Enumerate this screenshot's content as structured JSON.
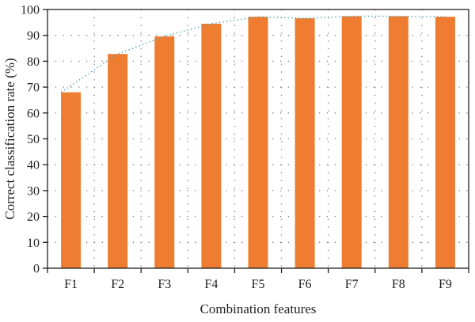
{
  "chart_data": {
    "type": "bar",
    "title": "",
    "xlabel": "Combination features",
    "ylabel": "Correct classification rate (%)",
    "categories": [
      "F1",
      "F2",
      "F3",
      "F4",
      "F5",
      "F6",
      "F7",
      "F8",
      "F9"
    ],
    "series": [
      {
        "values": [
          68,
          82.8,
          89.6,
          94.5,
          97.2,
          96.6,
          97.4,
          97.4,
          97.2
        ]
      }
    ],
    "ylim": [
      0,
      100
    ],
    "yticks": [
      0,
      10,
      20,
      30,
      40,
      50,
      60,
      70,
      80,
      90,
      100
    ],
    "grid": true,
    "trend_line": true,
    "colors": {
      "bar": "#ee7d31",
      "trend": "#4aa3b5",
      "grid": "#7f7f7f",
      "axis": "#231f20"
    }
  }
}
